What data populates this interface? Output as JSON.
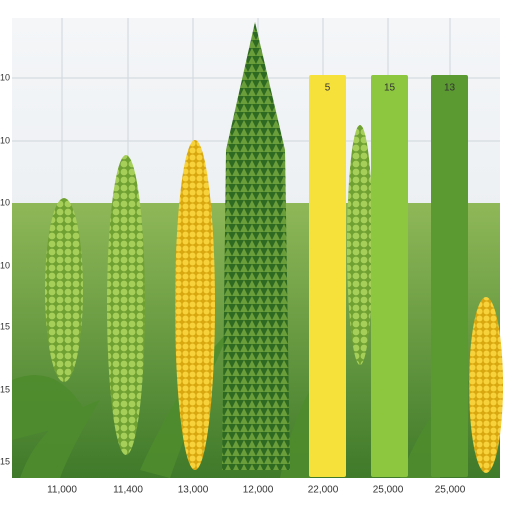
{
  "y_axis_labels": [
    "10",
    "10",
    "10",
    "10",
    "15",
    "15",
    "15"
  ],
  "x_axis_labels": [
    "11,000",
    "11,400",
    "13,000",
    "12,000",
    "22,000",
    "25,000",
    "25,000"
  ],
  "bars": [
    {
      "label": "5",
      "color": "#f6e03a"
    },
    {
      "label": "15",
      "color": "#8dc63f"
    },
    {
      "label": "13",
      "color": "#5b9a31"
    }
  ]
}
